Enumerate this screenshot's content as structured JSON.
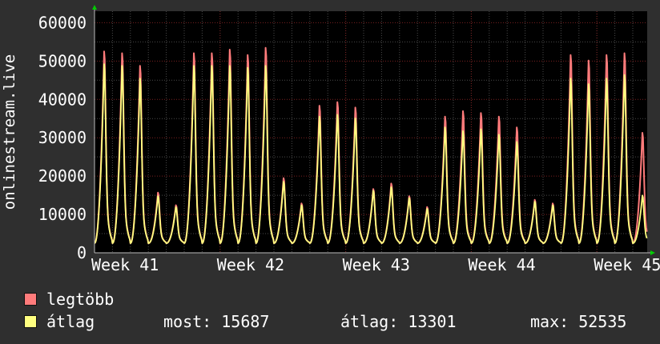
{
  "chart_data": {
    "type": "area",
    "ylabel": "onlinestream.live",
    "ylim": [
      0,
      63000
    ],
    "yticks": [
      0,
      10000,
      20000,
      30000,
      40000,
      50000,
      60000
    ],
    "week_labels": [
      "Week 41",
      "Week 42",
      "Week 43",
      "Week 44",
      "Week 45"
    ],
    "colors": {
      "background": "#000000",
      "grid": "#7a2020",
      "max_series": "#ff7b7b",
      "avg_series": "#ffff80",
      "axis_arrow": "#00cc00"
    },
    "series": [
      {
        "name": "legtöbb",
        "color": "#ff7b7b",
        "daily_peaks": [
          55500,
          55000,
          51500,
          16500,
          13000,
          55000,
          55000,
          56000,
          54500,
          56500,
          20500,
          13500,
          40500,
          41500,
          40000,
          17500,
          19000,
          15500,
          12500,
          37500,
          39000,
          38500,
          37500,
          34500,
          14500,
          13500,
          54500,
          53000,
          54500,
          55000,
          33000
        ]
      },
      {
        "name": "átlag",
        "color": "#ffff80",
        "daily_peaks": [
          52000,
          51500,
          48000,
          15500,
          12500,
          51500,
          51500,
          51500,
          51000,
          51500,
          19500,
          13000,
          37500,
          38000,
          37000,
          17000,
          18000,
          15000,
          12000,
          34500,
          33500,
          34000,
          32500,
          30500,
          14000,
          13000,
          48000,
          46500,
          48000,
          49000,
          15700
        ]
      }
    ]
  },
  "legend": {
    "max_label": "legtöbb",
    "avg_label": "átlag",
    "most_text": "most: 15687",
    "avg_text": "átlag: 13301",
    "max_text": "max: 52535"
  }
}
